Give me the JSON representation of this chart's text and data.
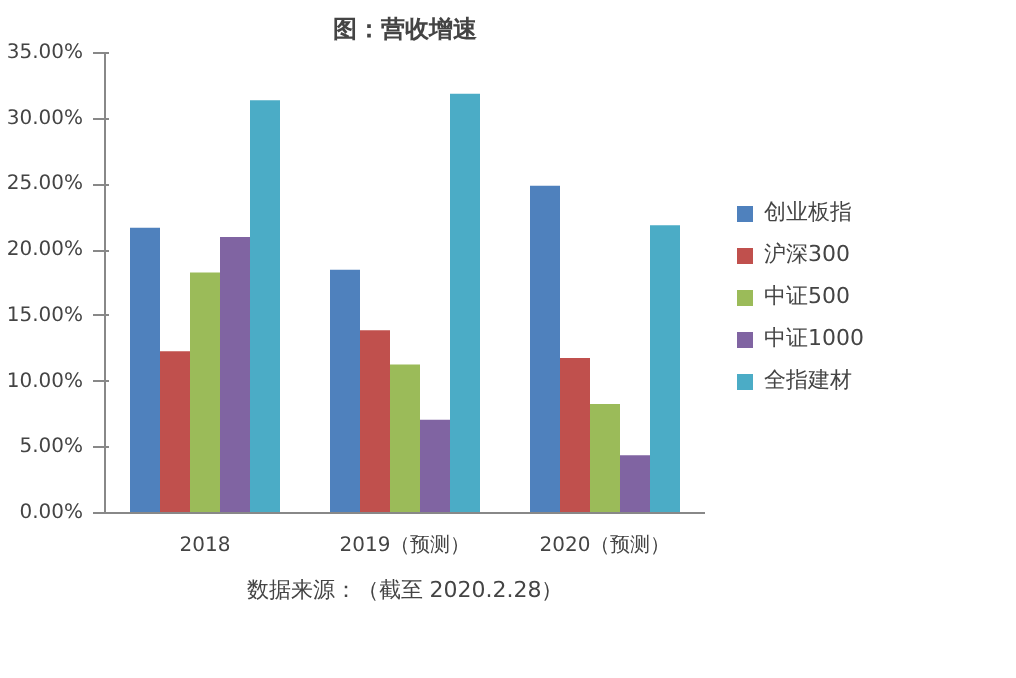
{
  "chart_data": {
    "type": "bar",
    "title": "图：营收增速",
    "categories": [
      "2018",
      "2019（预测）",
      "2020（预测）"
    ],
    "series": [
      {
        "name": "创业板指",
        "color": "#4f81bd",
        "values": [
          21.7,
          18.5,
          24.9
        ]
      },
      {
        "name": "沪深300",
        "color": "#c0504d",
        "values": [
          12.3,
          13.9,
          11.8
        ]
      },
      {
        "name": "中证500",
        "color": "#9bbb59",
        "values": [
          18.3,
          11.3,
          8.3
        ]
      },
      {
        "name": "中证1000",
        "color": "#8064a2",
        "values": [
          21.0,
          7.1,
          4.4
        ]
      },
      {
        "name": "全指建材",
        "color": "#4bacc6",
        "values": [
          31.4,
          31.9,
          21.9
        ]
      }
    ],
    "ylim": [
      0,
      35
    ],
    "yticks": [
      {
        "value": 0,
        "label": "0.00%"
      },
      {
        "value": 5,
        "label": "5.00%"
      },
      {
        "value": 10,
        "label": "10.00%"
      },
      {
        "value": 15,
        "label": "15.00%"
      },
      {
        "value": 20,
        "label": "20.00%"
      },
      {
        "value": 25,
        "label": "25.00%"
      },
      {
        "value": 30,
        "label": "30.00%"
      },
      {
        "value": 35,
        "label": "35.00%"
      }
    ],
    "legend": "right",
    "grid": false,
    "annotations": [
      "数据来源：（截至 2020.2.28）"
    ]
  }
}
